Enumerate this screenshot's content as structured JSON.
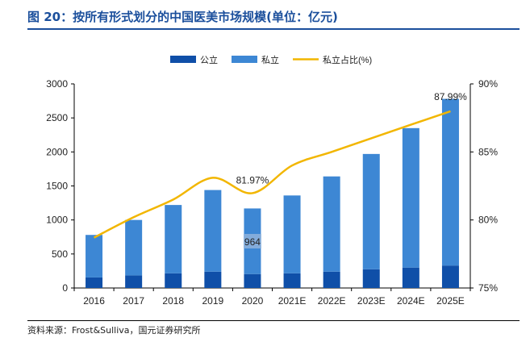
{
  "title": "图 20：按所有形式划分的中国医美市场规模(单位：亿元)",
  "source": "资料来源：Frost&Sulliva，国元证券研究所",
  "colors": {
    "public": "#0f4fa8",
    "private": "#3d87d4",
    "share": "#f2b600",
    "title": "#1b4f9c"
  },
  "chart_data": {
    "type": "bar",
    "stacked": true,
    "categories": [
      "2016",
      "2017",
      "2018",
      "2019",
      "2020",
      "2021E",
      "2022E",
      "2023E",
      "2024E",
      "2025E"
    ],
    "series": [
      {
        "name": "公立",
        "values": [
          155,
          185,
          215,
          240,
          205,
          215,
          240,
          275,
          300,
          330
        ]
      },
      {
        "name": "私立",
        "values": [
          625,
          815,
          1005,
          1200,
          964,
          1145,
          1400,
          1695,
          2050,
          2450
        ]
      }
    ],
    "line_series": {
      "name": "私立占比(%)",
      "values": [
        78.7,
        80.2,
        81.5,
        83.1,
        81.97,
        84.0,
        85.0,
        86.0,
        87.0,
        87.99
      ]
    },
    "annotations": [
      {
        "category": "2020",
        "text": "81.97%"
      },
      {
        "category": "2025E",
        "text": "87.99%"
      },
      {
        "category": "2020",
        "text": "964"
      }
    ],
    "y_left": {
      "min": 0,
      "max": 3000,
      "ticks": [
        "0",
        "500",
        "1000",
        "1500",
        "2000",
        "2500",
        "3000"
      ]
    },
    "y_right": {
      "min": 75,
      "max": 90,
      "ticks": [
        "75%",
        "80%",
        "85%",
        "90%"
      ]
    },
    "legend": [
      "公立",
      "私立",
      "私立占比(%)"
    ],
    "legend_position": "top-center",
    "grid": false
  }
}
